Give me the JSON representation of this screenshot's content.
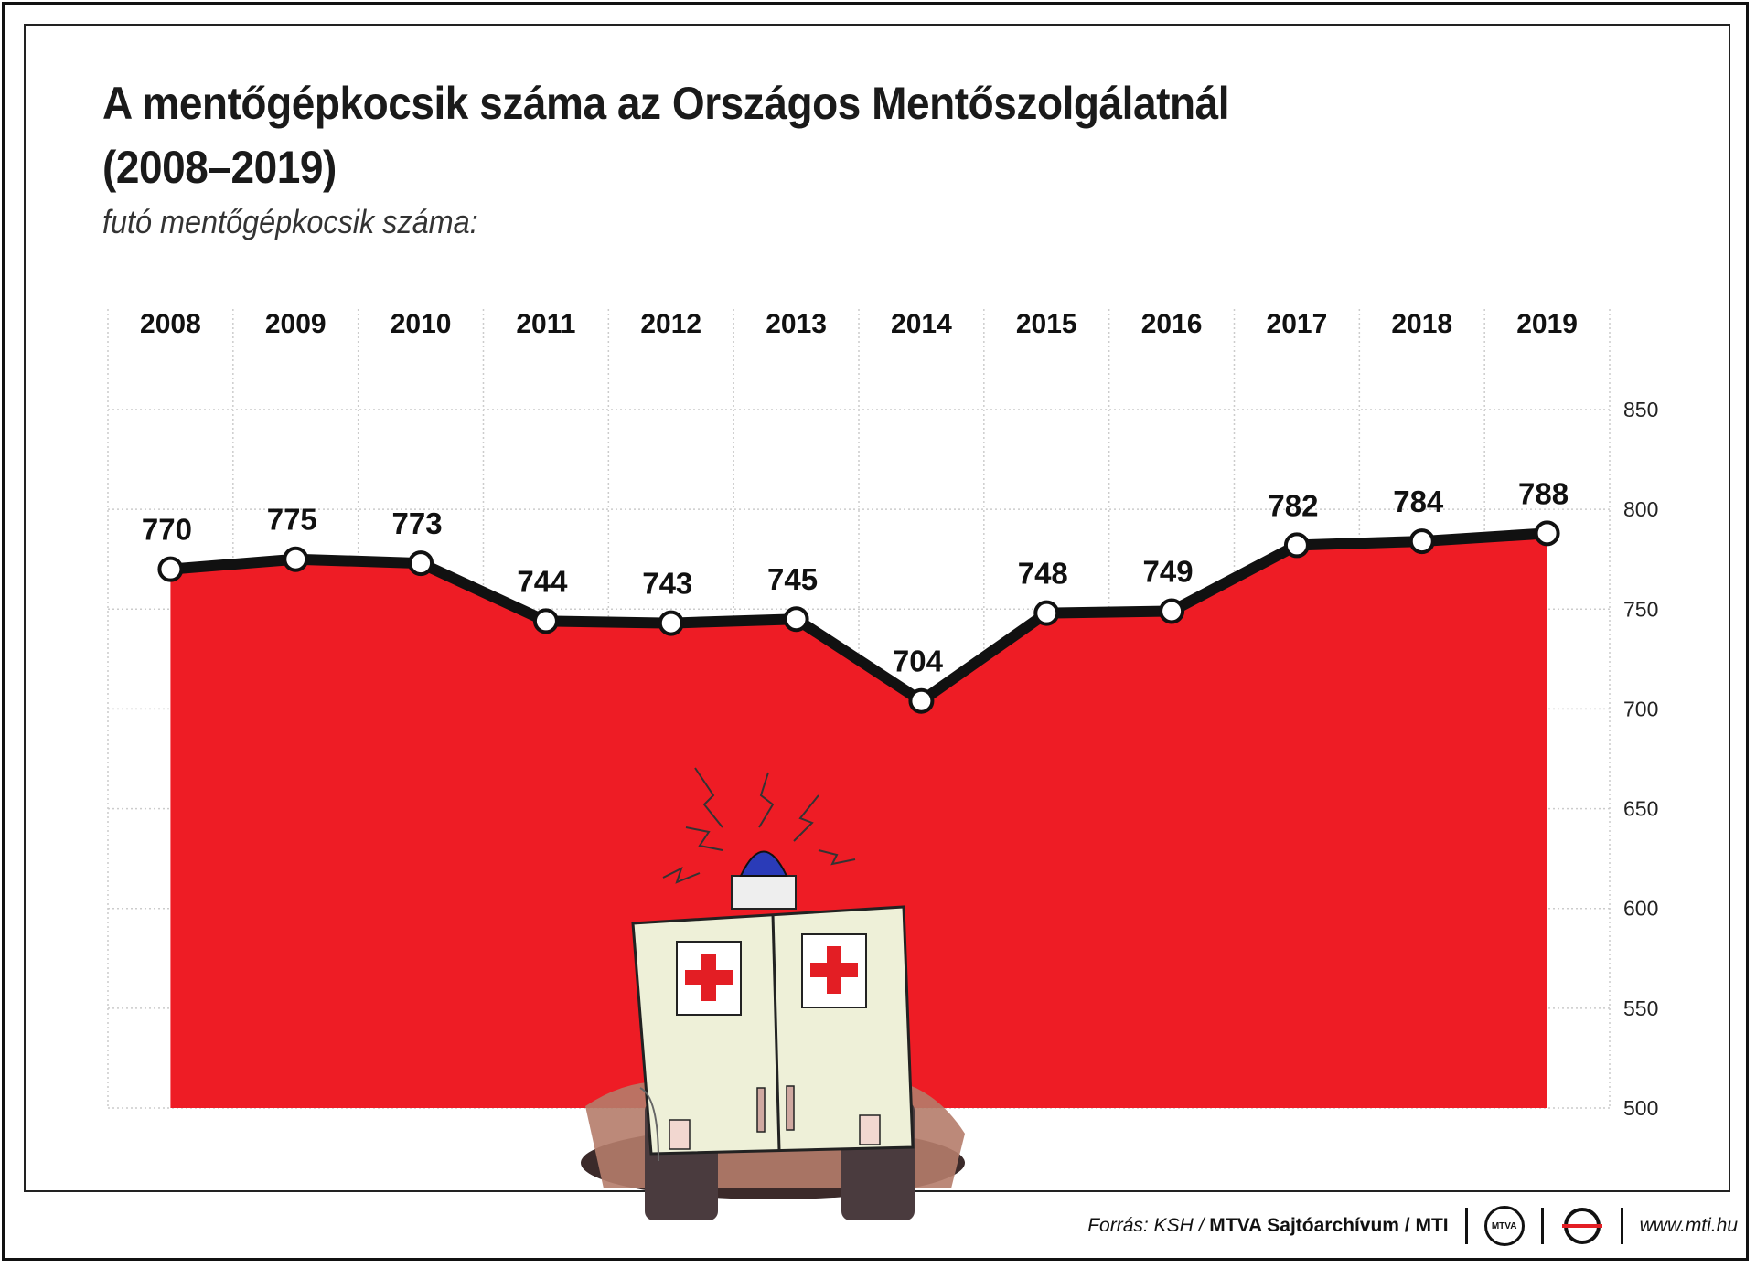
{
  "header": {
    "title_line1": "A mentőgépkocsik száma az Országos Mentőszolgálatnál",
    "title_line2": "(2008–2019)",
    "subtitle": "futó mentőgépkocsik száma:"
  },
  "chart_data": {
    "type": "area",
    "title": "A mentőgépkocsik száma az Országos Mentőszolgálatnál (2008–2019)",
    "subtitle": "futó mentőgépkocsik száma:",
    "categories": [
      "2008",
      "2009",
      "2010",
      "2011",
      "2012",
      "2013",
      "2014",
      "2015",
      "2016",
      "2017",
      "2018",
      "2019"
    ],
    "values": [
      770,
      775,
      773,
      744,
      743,
      745,
      704,
      748,
      749,
      782,
      784,
      788
    ],
    "ylim": [
      500,
      850
    ],
    "yticks": [
      500,
      550,
      600,
      650,
      700,
      750,
      800,
      850
    ],
    "xaxis_position": "top",
    "yaxis_position": "right",
    "grid": true,
    "colors": {
      "area": "#ee1c25",
      "line": "#111111",
      "marker_fill": "#ffffff",
      "grid": "#cccccc"
    }
  },
  "illustration": {
    "icon": "ambulance-illustration"
  },
  "footer": {
    "source_prefix": "Forrás: KSH /",
    "source_bold": "MTVA Sajtóarchívum / MTI",
    "logo1_text": "MTVA",
    "url": "www.mti.hu"
  }
}
